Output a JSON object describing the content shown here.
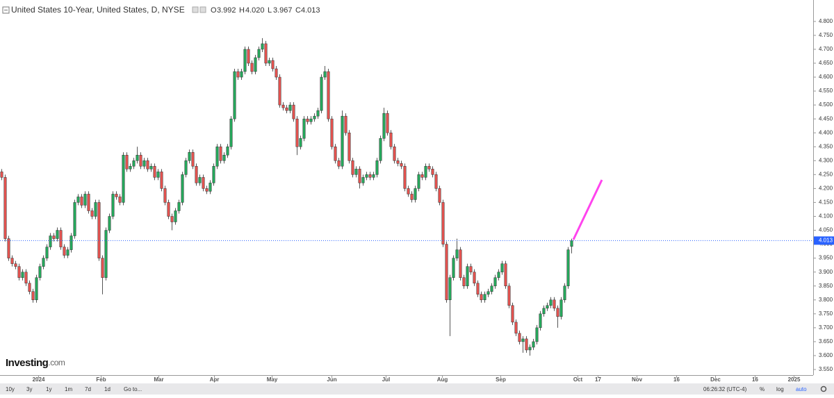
{
  "header": {
    "symbol": "United States 10-Year, United States, D, NYSE",
    "o_label": "O",
    "open": "3.992",
    "h_label": "H",
    "high": "4.020",
    "l_label": "L",
    "low": "3.967",
    "c_label": "C",
    "close": "4.013"
  },
  "logo": {
    "brand": "Investing",
    "suffix": ".com"
  },
  "toolbar": {
    "ranges": [
      "10y",
      "3y",
      "1y",
      "1m",
      "7d",
      "1d"
    ],
    "goto": "Go to...",
    "time": "06:26:32 (UTC-4)",
    "percent": "%",
    "log": "log",
    "auto": "auto"
  },
  "chart_data": {
    "type": "candlestick",
    "up_color": "#26a65b",
    "down_color": "#e0524f",
    "last_price_label": "4.013",
    "open": [
      4.26,
      4.24,
      4.02,
      3.95,
      3.93,
      3.92,
      3.88,
      3.9,
      3.86,
      3.83,
      3.8,
      3.88,
      3.92,
      3.95,
      3.99,
      4.03,
      4.02,
      4.05,
      3.99,
      3.96,
      3.98,
      4.03,
      4.15,
      4.17,
      4.14,
      4.18,
      4.12,
      4.1,
      4.15,
      3.95,
      3.88,
      4.05,
      4.1,
      4.18,
      4.17,
      4.15,
      4.32,
      4.27,
      4.28,
      4.3,
      4.32,
      4.28,
      4.3,
      4.27,
      4.28,
      4.24,
      4.26,
      4.2,
      4.15,
      4.1,
      4.08,
      4.12,
      4.15,
      4.25,
      4.3,
      4.33,
      4.28,
      4.22,
      4.24,
      4.2,
      4.19,
      4.22,
      4.28,
      4.35,
      4.3,
      4.32,
      4.35,
      4.45,
      4.62,
      4.6,
      4.62,
      4.7,
      4.65,
      4.62,
      4.67,
      4.7,
      4.72,
      4.65,
      4.66,
      4.63,
      4.6,
      4.5,
      4.49,
      4.48,
      4.5,
      4.45,
      4.35,
      4.38,
      4.45,
      4.44,
      4.45,
      4.46,
      4.48,
      4.6,
      4.62,
      4.45,
      4.35,
      4.3,
      4.28,
      4.46,
      4.4,
      4.3,
      4.25,
      4.27,
      4.22,
      4.24,
      4.25,
      4.24,
      4.25,
      4.3,
      4.38,
      4.47,
      4.4,
      4.35,
      4.3,
      4.29,
      4.28,
      4.2,
      4.18,
      4.16,
      4.2,
      4.25,
      4.24,
      4.28,
      4.27,
      4.25,
      4.2,
      4.15,
      4.0,
      3.8,
      3.88,
      3.95,
      3.98,
      3.88,
      3.85,
      3.92,
      3.9,
      3.86,
      3.82,
      3.8,
      3.82,
      3.83,
      3.85,
      3.88,
      3.9,
      3.93,
      3.85,
      3.78,
      3.72,
      3.68,
      3.65,
      3.66,
      3.62,
      3.63,
      3.65,
      3.7,
      3.75,
      3.77,
      3.78,
      3.8,
      3.77,
      3.74,
      3.8,
      3.85,
      3.992
    ],
    "high": [
      4.27,
      4.25,
      4.03,
      3.96,
      3.94,
      3.93,
      3.91,
      3.91,
      3.87,
      3.84,
      3.89,
      3.93,
      3.96,
      4.0,
      4.04,
      4.04,
      4.06,
      4.06,
      4.0,
      3.99,
      4.04,
      4.16,
      4.18,
      4.18,
      4.19,
      4.19,
      4.13,
      4.16,
      4.16,
      3.96,
      4.06,
      4.11,
      4.19,
      4.19,
      4.18,
      4.33,
      4.33,
      4.29,
      4.31,
      4.35,
      4.33,
      4.31,
      4.31,
      4.29,
      4.29,
      4.27,
      4.27,
      4.21,
      4.16,
      4.11,
      4.13,
      4.16,
      4.26,
      4.31,
      4.34,
      4.34,
      4.29,
      4.25,
      4.25,
      4.21,
      4.23,
      4.29,
      4.36,
      4.36,
      4.33,
      4.36,
      4.46,
      4.63,
      4.63,
      4.63,
      4.71,
      4.71,
      4.66,
      4.68,
      4.71,
      4.74,
      4.73,
      4.67,
      4.67,
      4.64,
      4.61,
      4.51,
      4.5,
      4.51,
      4.51,
      4.46,
      4.39,
      4.46,
      4.46,
      4.46,
      4.47,
      4.49,
      4.61,
      4.64,
      4.63,
      4.46,
      4.36,
      4.31,
      4.48,
      4.47,
      4.41,
      4.31,
      4.28,
      4.28,
      4.25,
      4.26,
      4.26,
      4.26,
      4.31,
      4.39,
      4.49,
      4.48,
      4.41,
      4.36,
      4.31,
      4.3,
      4.29,
      4.21,
      4.19,
      4.21,
      4.26,
      4.26,
      4.29,
      4.29,
      4.28,
      4.26,
      4.21,
      4.16,
      4.01,
      3.89,
      3.96,
      4.02,
      3.99,
      3.89,
      3.93,
      3.93,
      3.91,
      3.87,
      3.83,
      3.83,
      3.84,
      3.86,
      3.89,
      3.91,
      3.94,
      3.94,
      3.86,
      3.79,
      3.73,
      3.69,
      3.67,
      3.67,
      3.64,
      3.66,
      3.71,
      3.76,
      3.78,
      3.79,
      3.81,
      3.81,
      3.78,
      3.81,
      3.86,
      3.99,
      4.02
    ],
    "low": [
      4.23,
      4.01,
      3.94,
      3.92,
      3.91,
      3.87,
      3.87,
      3.85,
      3.82,
      3.79,
      3.79,
      3.87,
      3.91,
      3.94,
      3.98,
      4.01,
      4.01,
      3.98,
      3.95,
      3.95,
      3.97,
      4.02,
      4.14,
      4.13,
      4.13,
      4.11,
      4.09,
      4.09,
      3.94,
      3.82,
      3.87,
      4.04,
      4.09,
      4.16,
      4.14,
      4.14,
      4.26,
      4.26,
      4.27,
      4.29,
      4.27,
      4.27,
      4.26,
      4.26,
      4.23,
      4.23,
      4.19,
      4.14,
      4.09,
      4.05,
      4.07,
      4.11,
      4.14,
      4.24,
      4.29,
      4.27,
      4.21,
      4.21,
      4.19,
      4.18,
      4.18,
      4.21,
      4.27,
      4.29,
      4.29,
      4.31,
      4.34,
      4.44,
      4.59,
      4.59,
      4.61,
      4.64,
      4.61,
      4.61,
      4.66,
      4.69,
      4.64,
      4.64,
      4.62,
      4.59,
      4.49,
      4.48,
      4.47,
      4.47,
      4.44,
      4.32,
      4.34,
      4.37,
      4.43,
      4.43,
      4.44,
      4.45,
      4.47,
      4.59,
      4.44,
      4.34,
      4.29,
      4.27,
      4.27,
      4.39,
      4.29,
      4.24,
      4.24,
      4.2,
      4.21,
      4.23,
      4.23,
      4.23,
      4.24,
      4.29,
      4.37,
      4.39,
      4.34,
      4.29,
      4.28,
      4.27,
      4.19,
      4.17,
      4.15,
      4.15,
      4.19,
      4.23,
      4.23,
      4.26,
      4.24,
      4.19,
      4.14,
      3.99,
      3.79,
      3.67,
      3.87,
      3.94,
      3.87,
      3.84,
      3.84,
      3.89,
      3.85,
      3.81,
      3.79,
      3.79,
      3.81,
      3.82,
      3.84,
      3.87,
      3.89,
      3.84,
      3.77,
      3.71,
      3.67,
      3.64,
      3.61,
      3.61,
      3.6,
      3.62,
      3.64,
      3.69,
      3.74,
      3.76,
      3.77,
      3.76,
      3.7,
      3.73,
      3.79,
      3.84,
      3.967
    ],
    "close": [
      4.24,
      4.02,
      3.95,
      3.93,
      3.92,
      3.88,
      3.9,
      3.86,
      3.83,
      3.8,
      3.88,
      3.92,
      3.95,
      3.99,
      4.03,
      4.02,
      4.05,
      3.99,
      3.96,
      3.98,
      4.03,
      4.15,
      4.17,
      4.14,
      4.18,
      4.12,
      4.1,
      4.15,
      3.95,
      3.88,
      4.05,
      4.1,
      4.18,
      4.17,
      4.15,
      4.32,
      4.27,
      4.28,
      4.3,
      4.32,
      4.28,
      4.3,
      4.27,
      4.28,
      4.24,
      4.26,
      4.2,
      4.15,
      4.1,
      4.08,
      4.12,
      4.15,
      4.25,
      4.3,
      4.33,
      4.28,
      4.22,
      4.24,
      4.2,
      4.19,
      4.22,
      4.28,
      4.35,
      4.3,
      4.32,
      4.35,
      4.45,
      4.62,
      4.6,
      4.62,
      4.7,
      4.65,
      4.62,
      4.67,
      4.7,
      4.72,
      4.65,
      4.66,
      4.63,
      4.6,
      4.5,
      4.49,
      4.48,
      4.5,
      4.45,
      4.35,
      4.38,
      4.45,
      4.44,
      4.45,
      4.46,
      4.48,
      4.6,
      4.62,
      4.45,
      4.35,
      4.3,
      4.28,
      4.46,
      4.4,
      4.3,
      4.25,
      4.27,
      4.22,
      4.24,
      4.25,
      4.24,
      4.25,
      4.3,
      4.38,
      4.47,
      4.4,
      4.35,
      4.3,
      4.29,
      4.28,
      4.2,
      4.18,
      4.16,
      4.2,
      4.25,
      4.24,
      4.28,
      4.27,
      4.25,
      4.2,
      4.15,
      4.0,
      3.8,
      3.88,
      3.95,
      3.98,
      3.88,
      3.85,
      3.92,
      3.9,
      3.86,
      3.82,
      3.8,
      3.82,
      3.83,
      3.85,
      3.88,
      3.9,
      3.93,
      3.85,
      3.78,
      3.72,
      3.68,
      3.65,
      3.66,
      3.62,
      3.63,
      3.65,
      3.7,
      3.75,
      3.77,
      3.78,
      3.8,
      3.77,
      3.74,
      3.8,
      3.85,
      3.98,
      4.013
    ],
    "xlim": [
      -0.5,
      233.5
    ],
    "xticks": [
      {
        "value": 10.6,
        "label": "2024"
      },
      {
        "value": 28.6,
        "label": "Feb"
      },
      {
        "value": 45.2,
        "label": "Mar"
      },
      {
        "value": 61.2,
        "label": "Apr"
      },
      {
        "value": 77.8,
        "label": "May"
      },
      {
        "value": 95,
        "label": "Jun"
      },
      {
        "value": 110.6,
        "label": "Jul"
      },
      {
        "value": 126.8,
        "label": "Aug"
      },
      {
        "value": 143.6,
        "label": "Sep"
      },
      {
        "value": 165.8,
        "label": "Oct"
      },
      {
        "value": 171.6,
        "label": "17"
      },
      {
        "value": 182.8,
        "label": "Nov"
      },
      {
        "value": 194.2,
        "label": "16"
      },
      {
        "value": 205.4,
        "label": "Dec"
      },
      {
        "value": 216.8,
        "label": "16"
      },
      {
        "value": 228,
        "label": "2025"
      }
    ],
    "ylim": [
      3.53,
      4.877
    ],
    "yticks": [
      {
        "value": 3.55,
        "label": "3.550"
      },
      {
        "value": 3.6,
        "label": "3.600"
      },
      {
        "value": 3.65,
        "label": "3.650"
      },
      {
        "value": 3.7,
        "label": "3.700"
      },
      {
        "value": 3.75,
        "label": "3.750"
      },
      {
        "value": 3.8,
        "label": "3.800"
      },
      {
        "value": 3.85,
        "label": "3.850"
      },
      {
        "value": 3.9,
        "label": "3.900"
      },
      {
        "value": 3.95,
        "label": "3.950"
      },
      {
        "value": 4.0,
        "label": "4.000"
      },
      {
        "value": 4.05,
        "label": "4.050"
      },
      {
        "value": 4.1,
        "label": "4.100"
      },
      {
        "value": 4.15,
        "label": "4.150"
      },
      {
        "value": 4.2,
        "label": "4.200"
      },
      {
        "value": 4.25,
        "label": "4.250"
      },
      {
        "value": 4.3,
        "label": "4.300"
      },
      {
        "value": 4.35,
        "label": "4.350"
      },
      {
        "value": 4.4,
        "label": "4.400"
      },
      {
        "value": 4.45,
        "label": "4.450"
      },
      {
        "value": 4.5,
        "label": "4.500"
      },
      {
        "value": 4.55,
        "label": "4.550"
      },
      {
        "value": 4.6,
        "label": "4.600"
      },
      {
        "value": 4.65,
        "label": "4.650"
      },
      {
        "value": 4.7,
        "label": "4.700"
      },
      {
        "value": 4.75,
        "label": "4.750"
      },
      {
        "value": 4.8,
        "label": "4.800"
      }
    ]
  }
}
